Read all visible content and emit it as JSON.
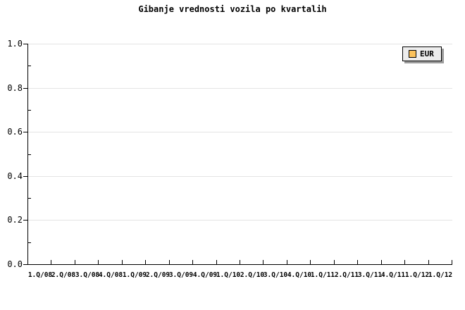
{
  "window": {
    "background": "#FFFFFF"
  },
  "chart_data": {
    "type": "line",
    "title": "Gibanje vrednosti vozila po kvartalih",
    "categories": [
      "1.Q/08",
      "2.Q/08",
      "3.Q/08",
      "4.Q/08",
      "1.Q/09",
      "2.Q/09",
      "3.Q/09",
      "4.Q/09",
      "1.Q/10",
      "2.Q/10",
      "3.Q/10",
      "4.Q/10",
      "1.Q/11",
      "2.Q/11",
      "3.Q/11",
      "4.Q/11",
      "1.Q/12",
      "1.Q/12"
    ],
    "series": [
      {
        "name": "EUR",
        "values": [],
        "color": "#FBC25C"
      }
    ],
    "xlabel": "",
    "ylabel": "",
    "ylim": [
      0.0,
      1.0
    ],
    "y_major_ticks": [
      1.0,
      0.8,
      0.6,
      0.4,
      0.2,
      0.0
    ],
    "y_major_tick_labels": [
      "1.0",
      "0.8",
      "0.6",
      "0.4",
      "0.2",
      "0.0"
    ],
    "y_minor_ticks": [
      0.9,
      0.7,
      0.5,
      0.3,
      0.1
    ],
    "grid": "horizontal-major",
    "legend_position": "top-right",
    "plot_empty": true
  },
  "legend": {
    "label": "EUR",
    "swatch_color": "#FBC25C"
  },
  "colors": {
    "background": "#FFFFFF",
    "axis": "#000000",
    "grid": "#E4E4E4",
    "text": "#000000",
    "legend_background": "#EDEDED",
    "legend_border": "#000000",
    "legend_shadow": "#9B9B9B",
    "series_eur": "#FBC25C"
  }
}
